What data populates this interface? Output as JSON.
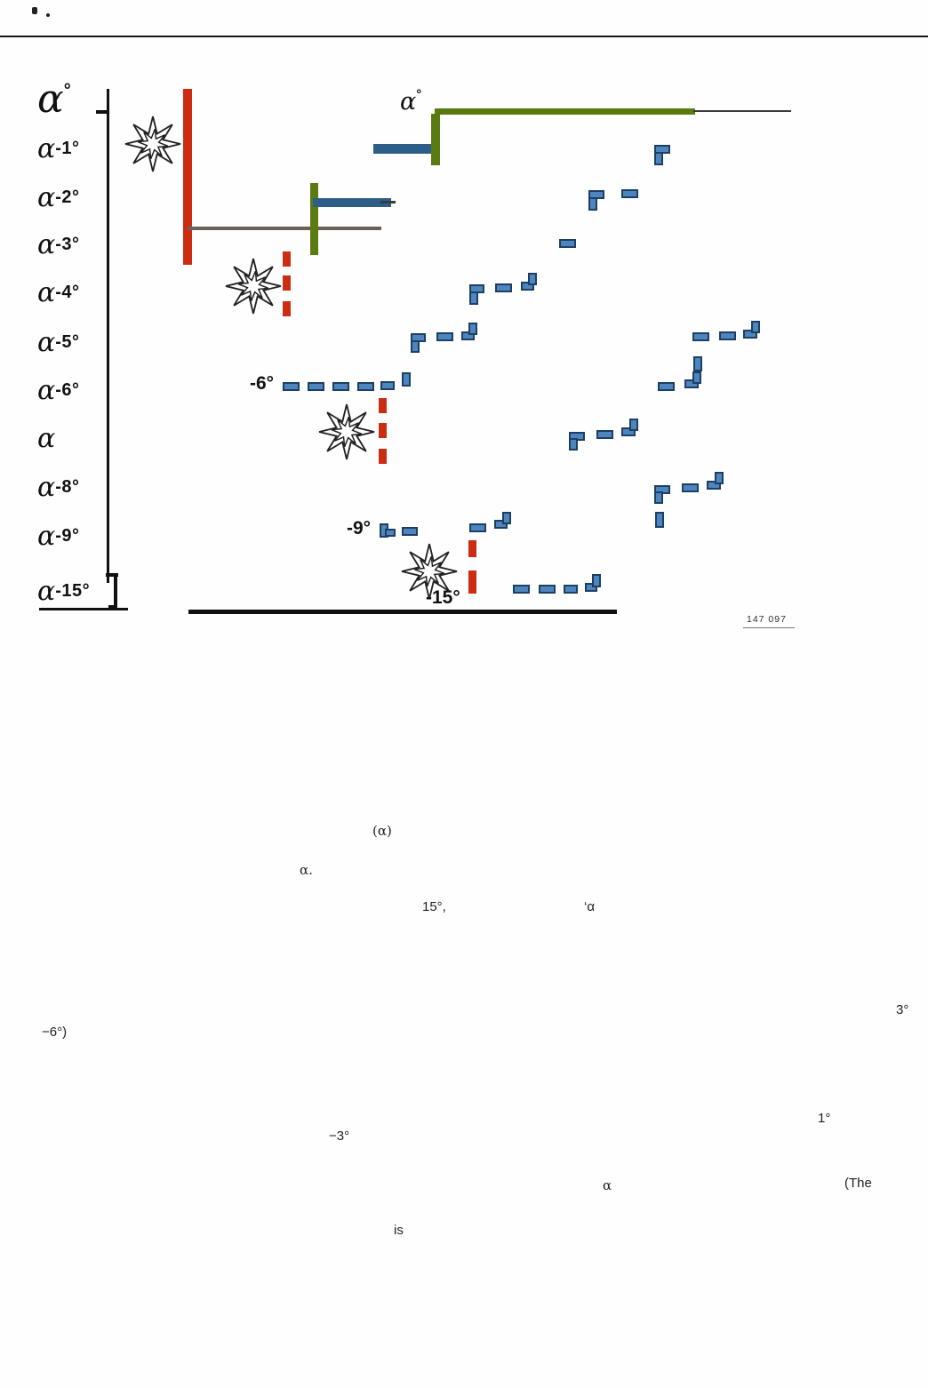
{
  "figure": {
    "axis_labels": [
      {
        "alpha": "α",
        "suffix": "°"
      },
      {
        "alpha": "α",
        "suffix": "-1°"
      },
      {
        "alpha": "α",
        "suffix": "-2°"
      },
      {
        "alpha": "α",
        "suffix": "-3°"
      },
      {
        "alpha": "α",
        "suffix": "-4°"
      },
      {
        "alpha": "α",
        "suffix": "-5°"
      },
      {
        "alpha": "α",
        "suffix": "-6°"
      },
      {
        "alpha": "α",
        "suffix": ""
      },
      {
        "alpha": "α",
        "suffix": "-8°"
      },
      {
        "alpha": "α",
        "suffix": "-9°"
      },
      {
        "alpha": "α",
        "suffix": "-15°"
      }
    ],
    "curve_label": {
      "alpha": "α",
      "suffix": "°"
    },
    "annotations": {
      "minus6": "-6°",
      "minus9": "-9°",
      "minus15": "-15°"
    },
    "figure_number": "147 097",
    "colors": {
      "red": "#cc2d12",
      "olive": "#5a7b10",
      "steel": "#2d5e88",
      "dash_fill": "#4d85be",
      "dash_border": "#1d3f63",
      "gray_line": "#6b6157"
    },
    "blue_dashes": [
      [
        736,
        163,
        18,
        10
      ],
      [
        736,
        171,
        10,
        15
      ],
      [
        662,
        214,
        18,
        10
      ],
      [
        662,
        222,
        10,
        15
      ],
      [
        699,
        213,
        19,
        10
      ],
      [
        629,
        269,
        19,
        10
      ],
      [
        528,
        328,
        10,
        15
      ],
      [
        528,
        320,
        17,
        10
      ],
      [
        557,
        319,
        19,
        10
      ],
      [
        586,
        317,
        15,
        10
      ],
      [
        594,
        307,
        10,
        14
      ],
      [
        462,
        382,
        10,
        15
      ],
      [
        462,
        375,
        17,
        10
      ],
      [
        491,
        374,
        19,
        10
      ],
      [
        519,
        373,
        15,
        10
      ],
      [
        527,
        363,
        10,
        14
      ],
      [
        318,
        430,
        19,
        10
      ],
      [
        346,
        430,
        19,
        10
      ],
      [
        374,
        430,
        19,
        10
      ],
      [
        402,
        430,
        19,
        10
      ],
      [
        428,
        429,
        16,
        10
      ],
      [
        452,
        419,
        10,
        16
      ],
      [
        779,
        374,
        19,
        10
      ],
      [
        809,
        373,
        19,
        10
      ],
      [
        836,
        371,
        16,
        10
      ],
      [
        845,
        361,
        10,
        14
      ],
      [
        780,
        401,
        10,
        17
      ],
      [
        740,
        430,
        19,
        10
      ],
      [
        770,
        427,
        16,
        10
      ],
      [
        779,
        418,
        10,
        14
      ],
      [
        640,
        486,
        18,
        10
      ],
      [
        640,
        493,
        10,
        14
      ],
      [
        671,
        484,
        19,
        10
      ],
      [
        699,
        481,
        16,
        10
      ],
      [
        708,
        471,
        10,
        14
      ],
      [
        736,
        546,
        18,
        10
      ],
      [
        736,
        553,
        10,
        14
      ],
      [
        767,
        544,
        19,
        10
      ],
      [
        795,
        541,
        16,
        10
      ],
      [
        804,
        531,
        10,
        14
      ],
      [
        737,
        576,
        10,
        18
      ],
      [
        427,
        589,
        10,
        16
      ],
      [
        433,
        595,
        12,
        9
      ],
      [
        452,
        593,
        18,
        10
      ],
      [
        528,
        589,
        19,
        10
      ],
      [
        556,
        585,
        15,
        10
      ],
      [
        565,
        576,
        10,
        14
      ],
      [
        577,
        658,
        19,
        10
      ],
      [
        606,
        658,
        19,
        10
      ],
      [
        634,
        658,
        16,
        10
      ],
      [
        658,
        656,
        14,
        10
      ],
      [
        666,
        646,
        10,
        15
      ]
    ],
    "red_dashes": [
      [
        318,
        283,
        9,
        17
      ],
      [
        318,
        310,
        9,
        17
      ],
      [
        318,
        339,
        9,
        17
      ],
      [
        426,
        448,
        9,
        17
      ],
      [
        426,
        476,
        9,
        17
      ],
      [
        426,
        505,
        9,
        17
      ],
      [
        527,
        608,
        9,
        19
      ],
      [
        527,
        642,
        9,
        26
      ]
    ]
  },
  "fragments": [
    "(α)",
    "α.",
    "15°,",
    "‘α",
    "3°",
    "−6°)",
    "1°",
    "−3°",
    "α",
    "(The",
    "is"
  ]
}
